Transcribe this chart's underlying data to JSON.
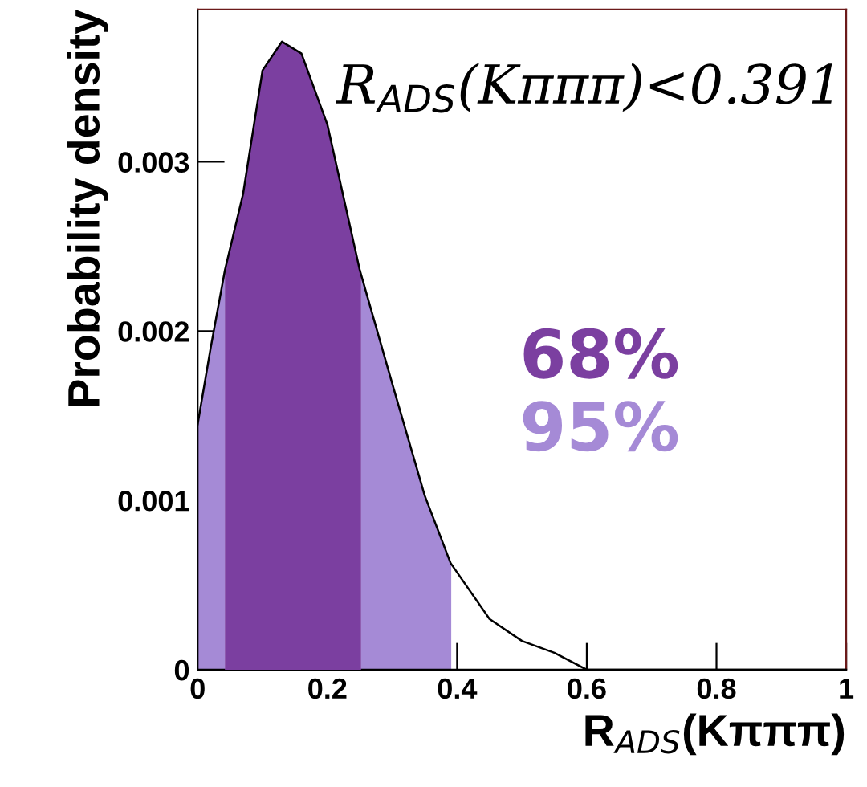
{
  "chart_data": {
    "type": "line",
    "xlabel": "R$_{ADS}$(Kπππ)",
    "ylabel": "Probability density",
    "series": [
      {
        "type": "area",
        "name": "95%",
        "color": "#a58ad6",
        "x": [
          0,
          0.02,
          0.042,
          0.07,
          0.1,
          0.13,
          0.16,
          0.2,
          0.252,
          0.3,
          0.35,
          0.391
        ],
        "values": [
          0.00145,
          0.0019,
          0.00236,
          null,
          null,
          null,
          null,
          null,
          0.00234,
          0.00169,
          0.00103,
          0.00063
        ]
      },
      {
        "type": "area",
        "name": "68%",
        "color": "#7b3fa0",
        "x": [
          0.042,
          0.07,
          0.1,
          0.13,
          0.16,
          0.2,
          0.252
        ],
        "values": [
          0.00236,
          0.00281,
          0.00354,
          0.00371,
          0.00364,
          0.00322,
          0.00234
        ]
      },
      {
        "color": "#000000",
        "x": [
          0,
          0.02,
          0.042,
          0.07,
          0.1,
          0.13,
          0.16,
          0.2,
          0.25,
          0.3,
          0.35,
          0.39,
          0.45,
          0.5,
          0.55,
          0.6,
          0.65,
          0.7,
          0.8,
          1
        ],
        "values": [
          0.00145,
          0.0019,
          0.00236,
          0.00281,
          0.00354,
          0.00371,
          0.00364,
          0.00322,
          0.00236,
          0.00169,
          0.00103,
          0.00063,
          0.0003,
          0.00017,
          0.0001,
          0,
          0,
          0,
          0,
          0
        ]
      }
    ],
    "annotations": [
      "R$_{ADS}$(Kπππ)<0.391"
    ],
    "xlim": [
      0,
      1
    ],
    "ylim": [
      0,
      0.0039
    ],
    "xticks": [
      0,
      0.2,
      0.4,
      0.6,
      0.8,
      1
    ],
    "yticks": [
      0,
      0.001,
      0.002,
      0.003
    ],
    "grid": false,
    "legend": false,
    "marker": "none",
    "line_style": "solid"
  }
}
